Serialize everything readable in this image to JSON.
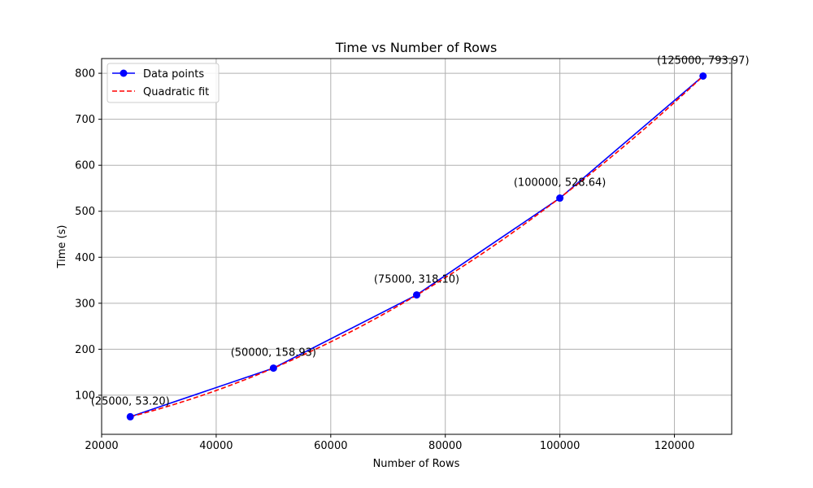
{
  "chart_data": {
    "type": "line",
    "title": "Time vs Number of Rows",
    "xlabel": "Number of Rows",
    "ylabel": "Time (s)",
    "xlim": [
      20000,
      130000
    ],
    "ylim": [
      15,
      832
    ],
    "xticks": [
      20000,
      40000,
      60000,
      80000,
      100000,
      120000
    ],
    "yticks": [
      100,
      200,
      300,
      400,
      500,
      600,
      700,
      800
    ],
    "grid": true,
    "legend_position": "upper-left",
    "series": [
      {
        "name": "Data points",
        "style": "solid-marker",
        "color": "#0000ff",
        "x": [
          25000,
          50000,
          75000,
          100000,
          125000
        ],
        "y": [
          53.2,
          158.93,
          318.1,
          528.64,
          793.97
        ]
      },
      {
        "name": "Quadratic fit",
        "style": "dashed",
        "color": "#ff0000",
        "quadratic": true,
        "x": [
          25000,
          50000,
          75000,
          100000,
          125000
        ],
        "y": [
          53.2,
          158.93,
          318.1,
          528.64,
          793.97
        ]
      }
    ],
    "annotations": [
      "(25000, 53.20)",
      "(50000, 158.93)",
      "(75000, 318.10)",
      "(100000, 528.64)",
      "(125000, 793.97)"
    ]
  }
}
